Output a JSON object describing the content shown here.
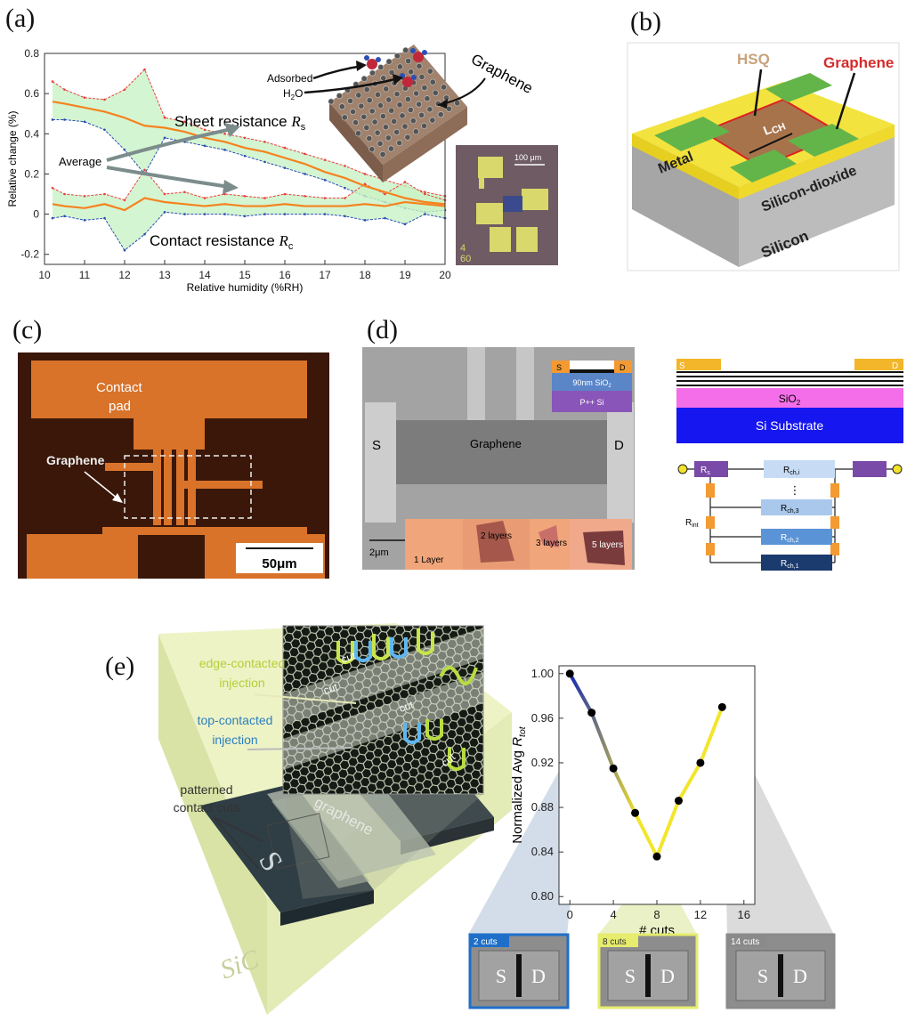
{
  "figure": {
    "a": {
      "label": "(a)",
      "chart": {
        "type": "line",
        "xlabel": "Relative humidity (%RH)",
        "ylabel": "Relative change (%)",
        "x": [
          10.2,
          10.5,
          11,
          11.5,
          12,
          12.5,
          13,
          13.5,
          14,
          14.5,
          15,
          15.5,
          16,
          16.5,
          17,
          17.5,
          18,
          18.5,
          19,
          19.5,
          20
        ],
        "xlim": [
          10,
          20
        ],
        "ylim": [
          -0.25,
          0.8
        ],
        "xticks": [
          10,
          11,
          12,
          13,
          14,
          15,
          16,
          17,
          18,
          19,
          20
        ],
        "yticks": [
          -0.2,
          0,
          0.2,
          0.4,
          0.6,
          0.8
        ],
        "series": [
          {
            "color": "#f5821f",
            "values": [
              0.56,
              0.55,
              0.53,
              0.51,
              0.48,
              0.44,
              0.43,
              0.41,
              0.38,
              0.36,
              0.33,
              0.31,
              0.28,
              0.25,
              0.21,
              0.18,
              0.14,
              0.11,
              0.08,
              0.06,
              0.05
            ]
          },
          {
            "color": "#f5821f",
            "values": [
              0.05,
              0.04,
              0.03,
              0.05,
              0.02,
              0.08,
              0.06,
              0.05,
              0.04,
              0.05,
              0.04,
              0.04,
              0.05,
              0.04,
              0.04,
              0.04,
              0.05,
              0.04,
              0.06,
              0.05,
              0.04
            ]
          }
        ],
        "bands": [
          {
            "fill": "#c9f3c5",
            "upper": {
              "color": "#e8413c",
              "values": [
                0.66,
                0.62,
                0.58,
                0.57,
                0.62,
                0.72,
                0.48,
                0.46,
                0.42,
                0.4,
                0.38,
                0.36,
                0.33,
                0.3,
                0.27,
                0.24,
                0.2,
                0.17,
                0.14,
                0.11,
                0.09
              ]
            },
            "lower": {
              "color": "#2a4fb0",
              "values": [
                0.47,
                0.47,
                0.46,
                0.42,
                0.32,
                0.2,
                0.38,
                0.36,
                0.34,
                0.32,
                0.29,
                0.26,
                0.23,
                0.2,
                0.17,
                0.13,
                0.09,
                0.06,
                0.03,
                0.01,
                0.02
              ]
            }
          },
          {
            "fill": "#c9f3c5",
            "upper": {
              "color": "#e8413c",
              "values": [
                0.13,
                0.1,
                0.09,
                0.1,
                0.07,
                0.22,
                0.1,
                0.11,
                0.08,
                0.1,
                0.09,
                0.08,
                0.1,
                0.09,
                0.08,
                0.08,
                0.15,
                0.1,
                0.16,
                0.1,
                0.07
              ]
            },
            "lower": {
              "color": "#2a4fb0",
              "values": [
                -0.02,
                -0.01,
                -0.03,
                -0.02,
                -0.18,
                -0.1,
                0.01,
                0,
                0,
                0,
                -0.01,
                0,
                0,
                0,
                0,
                -0.01,
                -0.03,
                -0.02,
                -0.05,
                0,
                -0.02
              ]
            }
          }
        ]
      },
      "annotations": {
        "sheet": "Sheet resistance ",
        "sheet_symbol": "R",
        "sheet_sub": "s",
        "contact": "Contact resistance ",
        "contact_symbol": "R",
        "contact_sub": "c",
        "average": "Average",
        "adsorbed": "Adsorbed",
        "water": "H",
        "water_sub": "2",
        "water_end": "O",
        "graphene": "Graphene",
        "scale": "100 μm",
        "chip_1": "4",
        "chip_2": "60"
      }
    },
    "b": {
      "label": "(b)",
      "hsq": "HSQ",
      "graphene": "Graphene",
      "metal": "Metal",
      "lch": "L",
      "lch_sub": "CH",
      "oxide": "Silicon-dioxide",
      "silicon": "Silicon"
    },
    "c": {
      "label": "(c)",
      "pad_1": "Contact",
      "pad_2": "pad",
      "graphene": "Graphene",
      "scale": "50μm"
    },
    "d": {
      "label": "(d)",
      "s": "S",
      "d": "D",
      "graphene": "Graphene",
      "scale": "2μm",
      "inset_s": "S",
      "inset_d": "D",
      "oxide": "90nm SiO",
      "oxide_sub": "2",
      "substrate": "P++ Si",
      "layers": [
        "1 Layer",
        "2 layers",
        "3 layers",
        "5 layers"
      ],
      "stack": {
        "s": "S",
        "d": "D",
        "oxide": "SiO",
        "oxide_sub": "2",
        "substrate": "Si Substrate"
      },
      "circuit": {
        "rs": "R",
        "rs_sub": "s",
        "rint": "R",
        "rint_sub": "int",
        "dots": "⋮",
        "channels": [
          {
            "r": "R",
            "sub": "ch,i"
          },
          {
            "r": "R",
            "sub": "ch,3"
          },
          {
            "r": "R",
            "sub": "ch,2"
          },
          {
            "r": "R",
            "sub": "ch,1"
          }
        ]
      }
    },
    "e": {
      "label": "(e)",
      "edge_1": "edge-contacted",
      "edge_2": "injection",
      "top_1": "top-contacted",
      "top_2": "injection",
      "cuts_1": "patterned",
      "cuts_2": "contact cuts",
      "cut": [
        "cut",
        "cut",
        "cut",
        "cut"
      ],
      "s": "S",
      "d": "D",
      "graphene": "graphene",
      "substrate": "SiC",
      "chart": {
        "type": "line",
        "xlabel": "# cuts",
        "ylabel": "Normalized Avg ",
        "ylabel_symbol": "R",
        "ylabel_sub": "tot",
        "x": [
          0,
          2,
          4,
          6,
          8,
          10,
          12,
          14
        ],
        "values": [
          1.0,
          0.965,
          0.915,
          0.875,
          0.836,
          0.886,
          0.92,
          0.97
        ],
        "xlim": [
          -1,
          17
        ],
        "ylim": [
          0.793,
          1.007
        ],
        "xticks": [
          0,
          4,
          8,
          12,
          16
        ],
        "yticks": [
          {
            "value": 0.8,
            "label": "0.80"
          },
          {
            "value": 0.84,
            "label": "0.84"
          },
          {
            "value": 0.88,
            "label": "0.88"
          },
          {
            "value": 0.92,
            "label": "0.92"
          },
          {
            "value": 0.96,
            "label": "0.96"
          },
          {
            "value": 1,
            "label": "1.00"
          }
        ],
        "colors": [
          "#1a2bb0",
          "#f3e52c"
        ],
        "marker_color": "#000000"
      },
      "thumbnails": [
        {
          "label": "2 cuts",
          "color": "#1f6fc8",
          "s": "S",
          "d": "D"
        },
        {
          "label": "8 cuts",
          "color": "#e5ec6e",
          "s": "S",
          "d": "D"
        },
        {
          "label": "14 cuts",
          "color": "#8a8a8a",
          "s": "S",
          "d": "D"
        }
      ]
    }
  }
}
